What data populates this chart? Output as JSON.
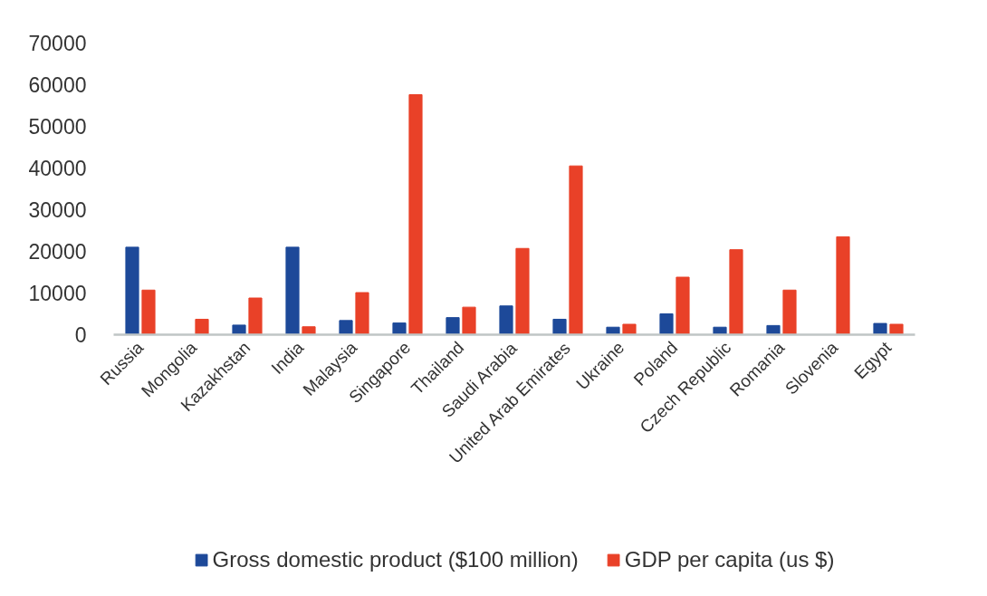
{
  "chart_data": {
    "type": "bar",
    "categories": [
      "Russia",
      "Mongolia",
      "Kazakhstan",
      "India",
      "Malaysia",
      "Singapore",
      "Thailand",
      "Saudi Arabia",
      "United Arab Emirates",
      "Ukraine",
      "Poland",
      "Czech Republic",
      "Romania",
      "Slovenia",
      "Egypt"
    ],
    "series": [
      {
        "name": "Gross domestic product ($100 million)",
        "color": "#1d4999",
        "values": [
          21000,
          null,
          2300,
          21000,
          3400,
          2800,
          4100,
          6900,
          3700,
          1800,
          5000,
          1800,
          2200,
          null,
          2700
        ]
      },
      {
        "name": "GDP per capita (us $)",
        "color": "#e94128",
        "values": [
          10700,
          3700,
          8800,
          1900,
          10100,
          57600,
          6600,
          20700,
          40500,
          2500,
          13800,
          20400,
          10700,
          23500,
          2500
        ]
      }
    ],
    "ylim": [
      0,
      70000
    ],
    "yticks": [
      0,
      10000,
      20000,
      30000,
      40000,
      50000,
      60000,
      70000
    ],
    "grid": false,
    "legend": "bottom"
  }
}
